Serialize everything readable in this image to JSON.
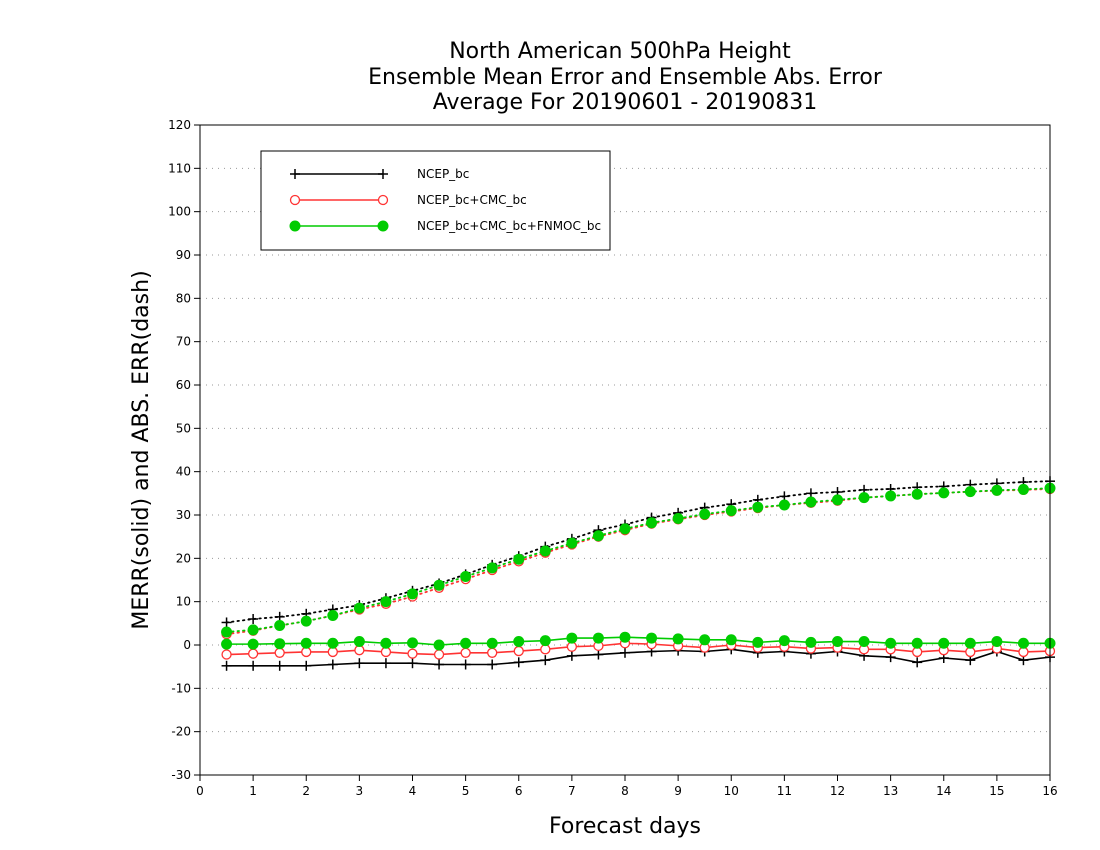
{
  "chart_data": {
    "type": "line",
    "title": [
      "North American 500hPa Height",
      "Ensemble Mean Error and Ensemble Abs. Error",
      "Average For 20190601 - 20190831"
    ],
    "xlabel": "Forecast days",
    "ylabel": "MERR(solid) and ABS. ERR(dash)",
    "xlim": [
      0,
      16
    ],
    "ylim": [
      -30,
      120
    ],
    "xticks": [
      "0",
      "1",
      "2",
      "3",
      "4",
      "5",
      "6",
      "7",
      "8",
      "9",
      "10",
      "11",
      "12",
      "13",
      "14",
      "15",
      "16"
    ],
    "yticks": [
      "-30",
      "-20",
      "-10",
      "0",
      "10",
      "20",
      "30",
      "40",
      "50",
      "60",
      "70",
      "80",
      "90",
      "100",
      "110",
      "120"
    ],
    "grid": true,
    "legend_position": "top-left",
    "x": [
      0.5,
      1,
      1.5,
      2,
      2.5,
      3,
      3.5,
      4,
      4.5,
      5,
      5.5,
      6,
      6.5,
      7,
      7.5,
      8,
      8.5,
      9,
      9.5,
      10,
      10.5,
      11,
      11.5,
      12,
      12.5,
      13,
      13.5,
      14,
      14.5,
      15,
      15.5,
      16
    ],
    "series": [
      {
        "name": "NCEP_bc",
        "color": "#000000",
        "marker": "plus",
        "merr": [
          -4.8,
          -4.8,
          -4.8,
          -4.8,
          -4.5,
          -4.2,
          -4.2,
          -4.2,
          -4.5,
          -4.5,
          -4.5,
          -4,
          -3.5,
          -2.5,
          -2.2,
          -1.8,
          -1.5,
          -1.3,
          -1.5,
          -1,
          -1.8,
          -1.5,
          -2,
          -1.5,
          -2.5,
          -2.8,
          -4,
          -3,
          -3.5,
          -1.5,
          -3.5,
          -2.8
        ],
        "abserr": [
          5.2,
          6,
          6.5,
          7.2,
          8.2,
          9.2,
          10.8,
          12.5,
          14.2,
          16.3,
          18.5,
          20.5,
          22.7,
          24.5,
          26.5,
          27.8,
          29.4,
          30.5,
          31.7,
          32.5,
          33.5,
          34.3,
          35,
          35.3,
          35.8,
          36,
          36.4,
          36.6,
          37,
          37.3,
          37.6,
          37.8
        ]
      },
      {
        "name": "NCEP_bc+CMC_bc",
        "color": "#ff3333",
        "marker": "open-circle",
        "merr": [
          -2.2,
          -2,
          -1.8,
          -1.6,
          -1.6,
          -1.2,
          -1.6,
          -2,
          -2.2,
          -1.8,
          -1.8,
          -1.4,
          -1,
          -0.4,
          -0.2,
          0.4,
          0.2,
          -0.2,
          -0.6,
          0,
          -0.6,
          -0.4,
          -0.8,
          -0.6,
          -1,
          -1,
          -1.6,
          -1.2,
          -1.6,
          -0.8,
          -1.6,
          -1.4
        ],
        "abserr": [
          2.5,
          3.3,
          4.5,
          5.5,
          6.8,
          8.2,
          9.5,
          11.2,
          13.2,
          15.2,
          17.3,
          19.3,
          21.3,
          23.2,
          25,
          26.5,
          28,
          29,
          30,
          30.8,
          31.6,
          32.3,
          32.8,
          33.3,
          34,
          34.4,
          34.8,
          35.1,
          35.4,
          35.6,
          35.8,
          36
        ]
      },
      {
        "name": "NCEP_bc+CMC_bc+FNMOC_bc",
        "color": "#00cc00",
        "marker": "filled-circle",
        "merr": [
          0.2,
          0.2,
          0.3,
          0.4,
          0.4,
          0.8,
          0.4,
          0.5,
          0,
          0.4,
          0.4,
          0.8,
          1,
          1.6,
          1.6,
          1.8,
          1.6,
          1.4,
          1.2,
          1.2,
          0.6,
          1,
          0.6,
          0.8,
          0.8,
          0.4,
          0.4,
          0.4,
          0.4,
          0.8,
          0.4,
          0.4
        ],
        "abserr": [
          3,
          3.5,
          4.5,
          5.5,
          6.8,
          8.5,
          10,
          11.8,
          13.8,
          15.8,
          17.8,
          19.8,
          21.7,
          23.5,
          25.2,
          26.8,
          28.2,
          29.2,
          30.2,
          31,
          31.8,
          32.3,
          33,
          33.5,
          34,
          34.4,
          34.8,
          35.1,
          35.4,
          35.7,
          35.9,
          36.2
        ]
      }
    ]
  }
}
